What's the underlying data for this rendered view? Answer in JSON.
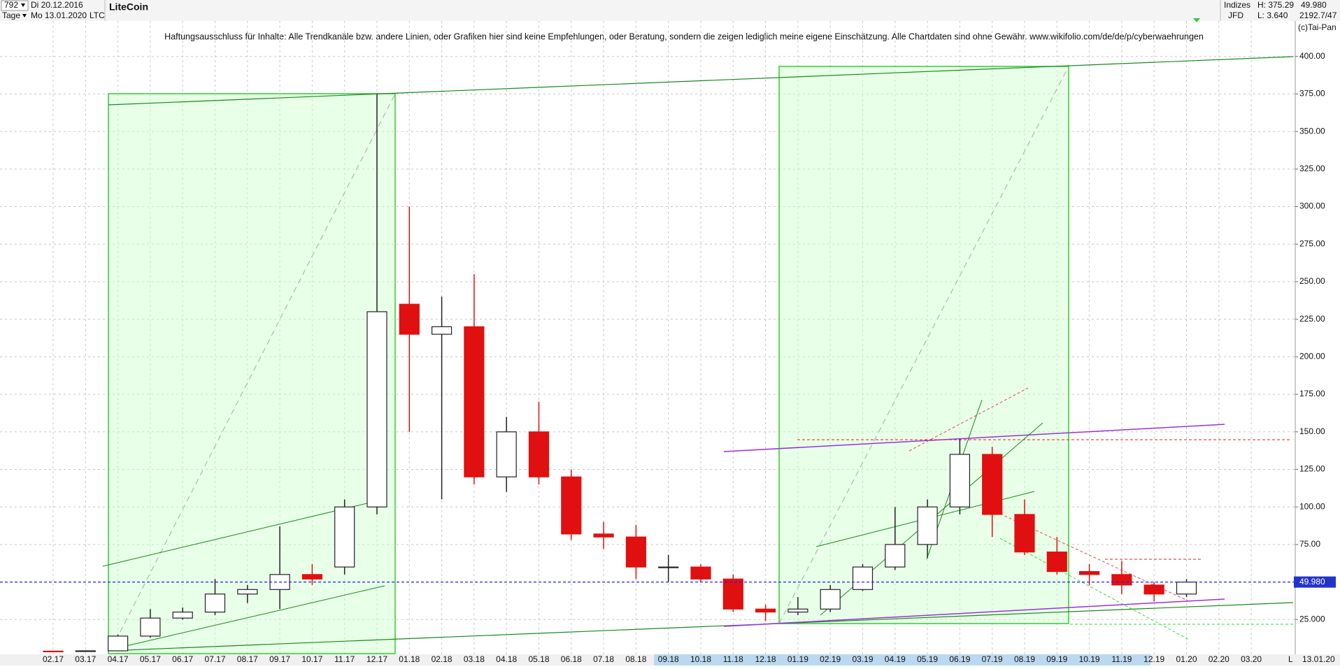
{
  "header": {
    "count": "792",
    "start_date": "Di 20.12.2016",
    "period": "Tage",
    "end_date": "Mo 13.01.2020",
    "title": "LiteCoin",
    "symbol": "LTC",
    "market": "Indizes",
    "broker": "JFD",
    "high": "H: 375.29",
    "low": "L: 3.640",
    "last": "49.980",
    "info": "2192.7/47",
    "copyright": "(c)Tai-Pan",
    "disclaimer": "Haftungsausschluss für Inhalte: Alle Trendkanäle bzw. andere Linien, oder Grafiken hier sind keine Empfehlungen, oder Beratung, sondern die zeigen lediglich meine eigene Einschätzung. Alle Chartdaten sind ohne Gewähr.  www.wikifolio.com/de/de/p/cyberwaehrungen",
    "cursor_date": "13.01.20",
    "scale_mode": "L"
  },
  "chart_data": {
    "type": "candlestick",
    "categories": [
      "02.17",
      "03.17",
      "04.17",
      "05.17",
      "06.17",
      "07.17",
      "08.17",
      "09.17",
      "10.17",
      "11.17",
      "12.17",
      "01.18",
      "02.18",
      "03.18",
      "04.18",
      "05.18",
      "06.18",
      "07.18",
      "08.18",
      "09.18",
      "10.18",
      "11.18",
      "12.18",
      "01.19",
      "02.19",
      "03.19",
      "04.19",
      "05.19",
      "06.19",
      "07.19",
      "08.19",
      "09.19",
      "10.19",
      "11.19",
      "12.19",
      "01.20",
      "02.20",
      "03.20"
    ],
    "open": [
      4,
      3.9,
      4.2,
      14,
      26,
      30,
      42,
      45,
      55,
      60,
      100,
      235,
      215,
      220,
      120,
      150,
      120,
      82,
      80,
      60,
      60,
      52,
      32,
      30,
      32,
      45,
      60,
      75,
      100,
      135,
      95,
      70,
      57,
      55,
      48,
      42,
      null,
      null
    ],
    "high": [
      4.2,
      4.5,
      15,
      32,
      33,
      52,
      48,
      87,
      62,
      105,
      375,
      300,
      240,
      255,
      160,
      170,
      125,
      90,
      88,
      68,
      62,
      55,
      35,
      40,
      48,
      62,
      100,
      105,
      145,
      140,
      105,
      80,
      62,
      64,
      50,
      52,
      null,
      null
    ],
    "low": [
      3.7,
      3.6,
      4.1,
      13,
      25,
      28,
      36,
      32,
      48,
      55,
      95,
      150,
      105,
      115,
      110,
      115,
      78,
      72,
      52,
      50,
      50,
      30,
      24,
      28,
      30,
      44,
      58,
      66,
      95,
      80,
      68,
      55,
      48,
      42,
      37,
      40,
      null,
      null
    ],
    "close": [
      3.9,
      4.2,
      14,
      26,
      30,
      42,
      45,
      55,
      52,
      100,
      230,
      215,
      220,
      120,
      150,
      120,
      82,
      80,
      60,
      60,
      52,
      32,
      30,
      32,
      45,
      60,
      75,
      100,
      135,
      95,
      70,
      57,
      55,
      48,
      42,
      50,
      null,
      null
    ],
    "up_color": "#222222",
    "down_color": "#e01010",
    "last_price": {
      "value": 49.98,
      "label": "49.980"
    },
    "ylim": [
      0,
      425
    ],
    "yticks": [
      {
        "value": 25,
        "label": "25.000"
      },
      {
        "value": 75,
        "label": "75.00"
      },
      {
        "value": 100,
        "label": "100.00"
      },
      {
        "value": 125,
        "label": "125.00"
      },
      {
        "value": 150,
        "label": "150.00"
      },
      {
        "value": 175,
        "label": "175.00"
      },
      {
        "value": 200,
        "label": "200.00"
      },
      {
        "value": 225,
        "label": "225.00"
      },
      {
        "value": 250,
        "label": "250.00"
      },
      {
        "value": 275,
        "label": "275.00"
      },
      {
        "value": 300,
        "label": "300.00"
      },
      {
        "value": 325,
        "label": "325.00"
      },
      {
        "value": 350,
        "label": "350.00"
      },
      {
        "value": 375,
        "label": "375.00"
      },
      {
        "value": 400,
        "label": "400.00"
      }
    ],
    "grid": true
  }
}
